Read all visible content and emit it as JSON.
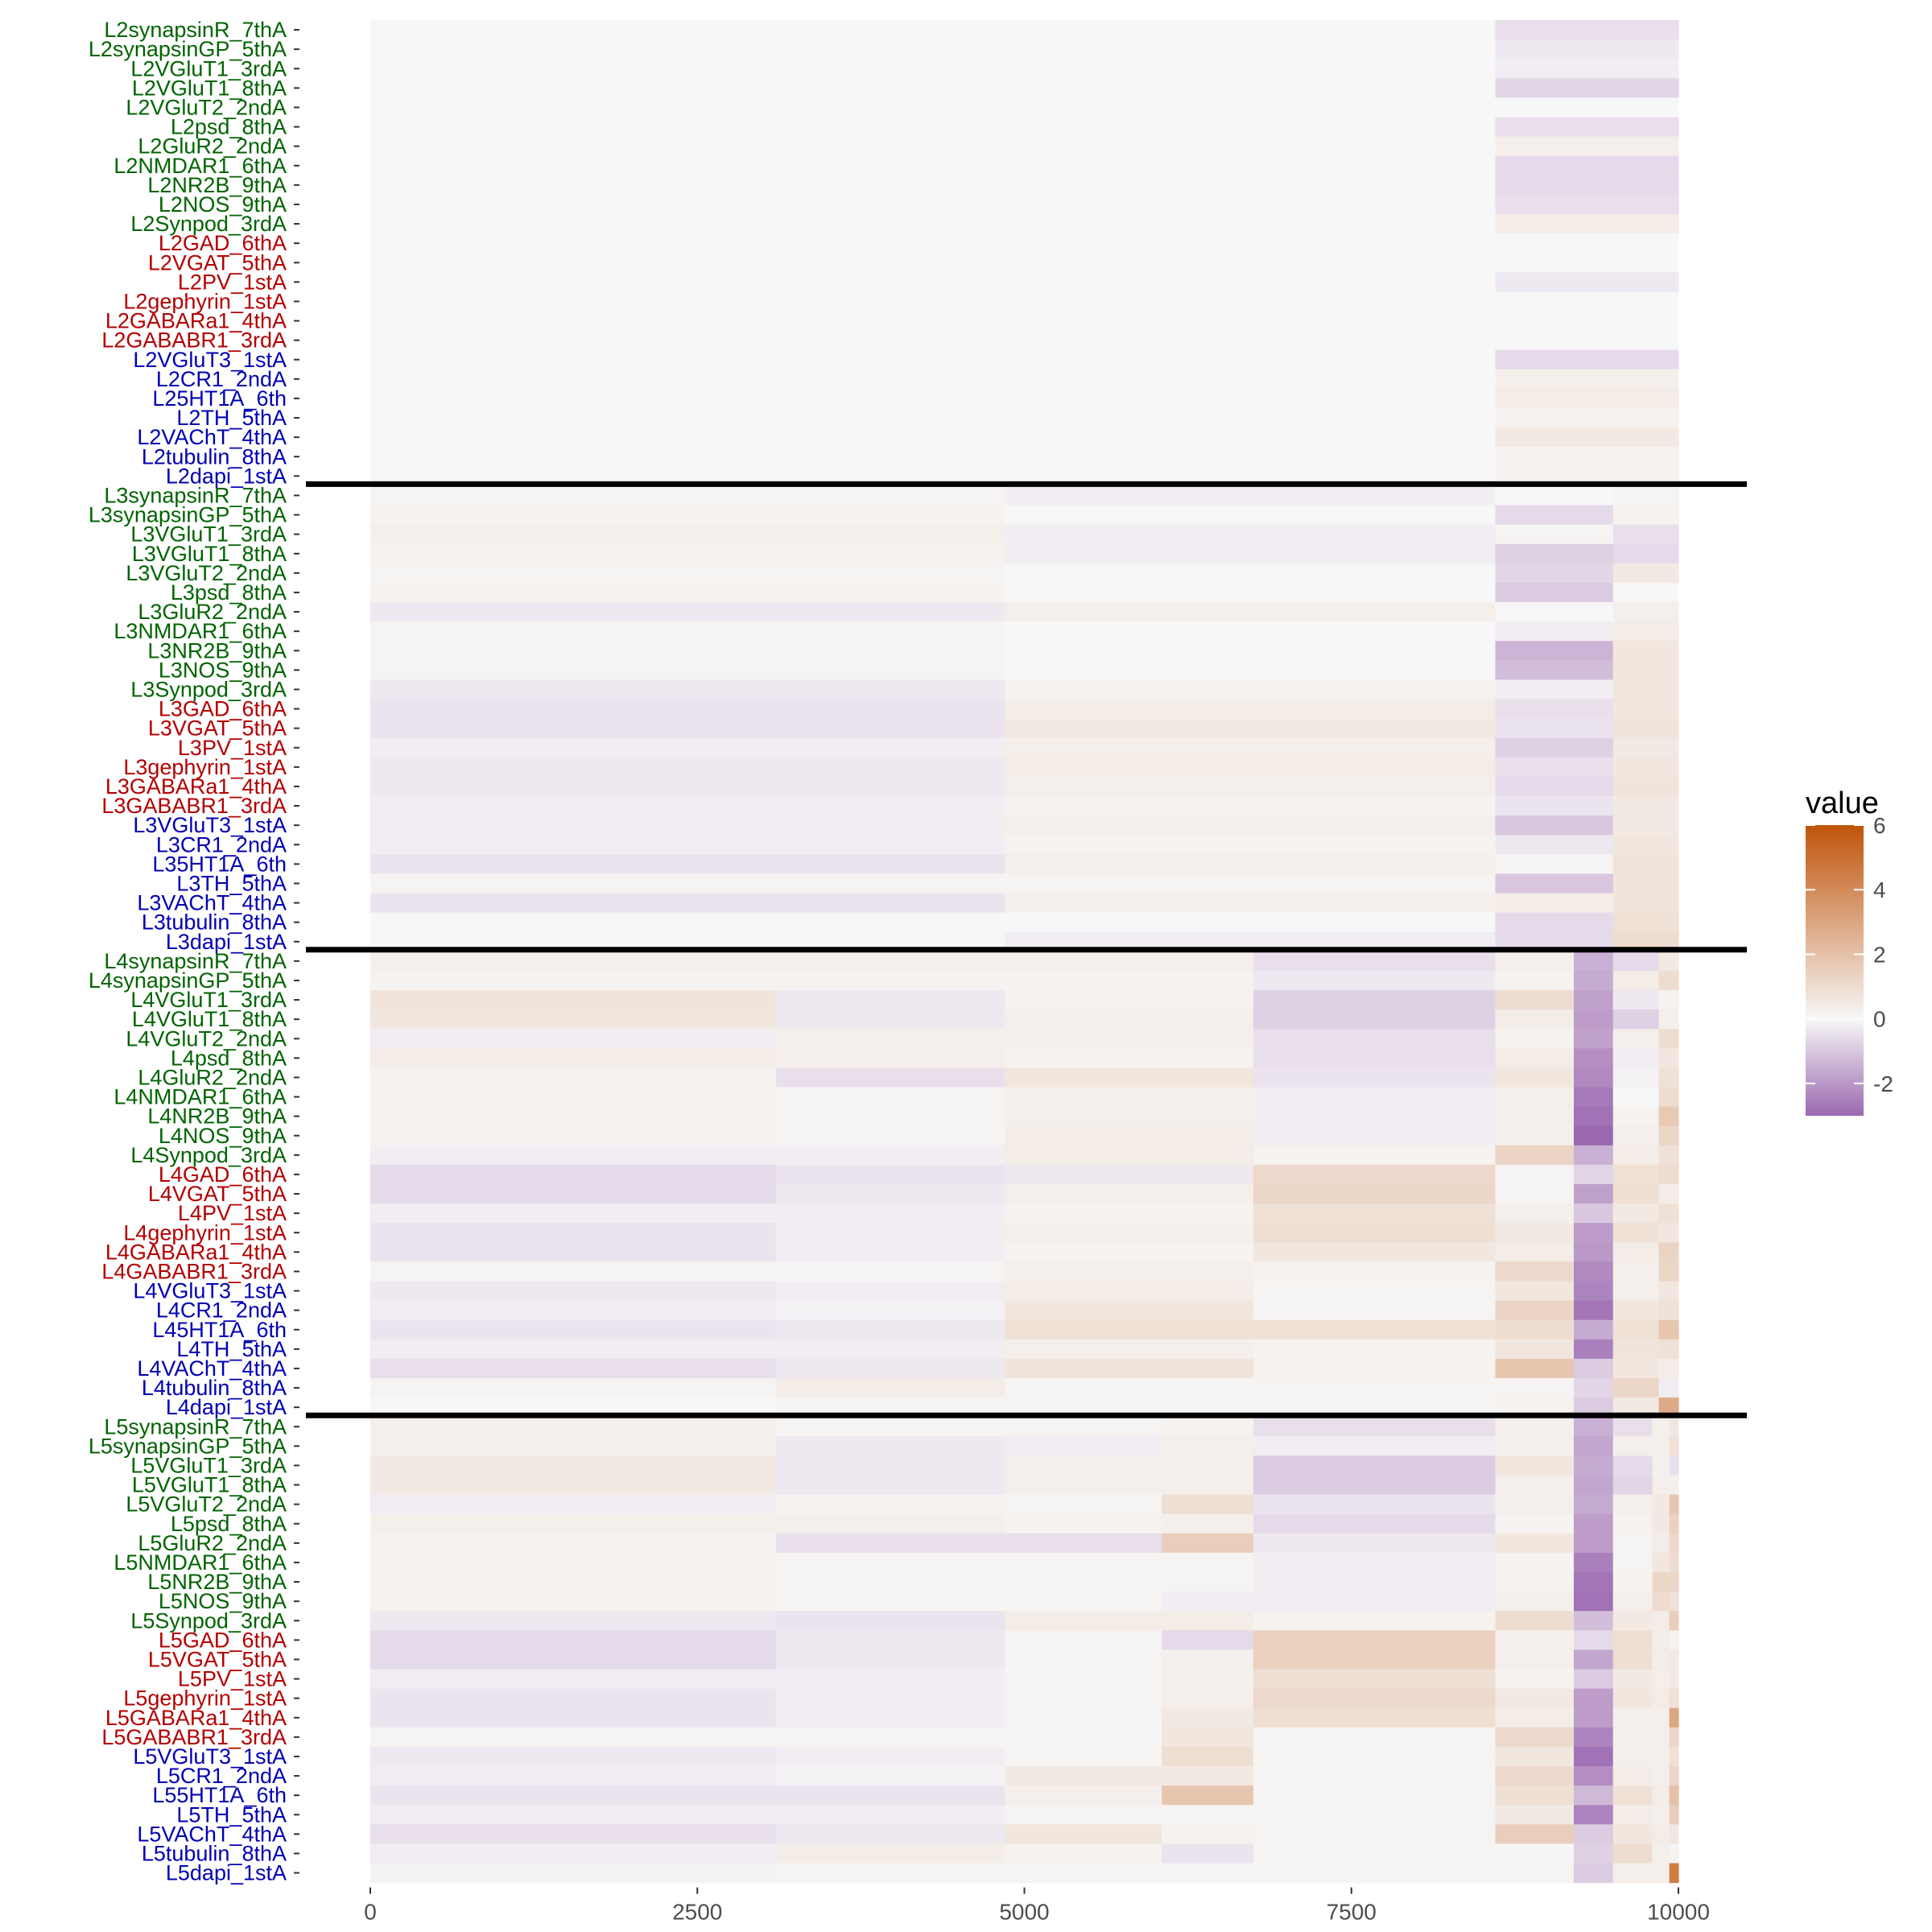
{
  "chart_data": {
    "type": "heatmap",
    "title": "",
    "xlabel": "",
    "ylabel": "",
    "xlim": [
      0,
      10000
    ],
    "x_ticks": [
      0,
      2500,
      5000,
      7500,
      10000
    ],
    "x_tick_labels": [
      "0",
      "2500",
      "5000",
      "7500",
      "10000"
    ],
    "legend": {
      "title": "value",
      "position": "right",
      "range": [
        -3,
        6
      ],
      "ticks": [
        6,
        4,
        2,
        0,
        -2
      ],
      "tick_labels": [
        "6",
        "4",
        "2",
        "0",
        "-2"
      ]
    },
    "colors": {
      "low": "#9b68b0",
      "mid": "#f7f7f7",
      "high": "#c0540a",
      "group_excitatory": "#006400",
      "group_inhibitory": "#b30000",
      "group_other": "#0000b3",
      "separator": "#000000"
    },
    "marker_order": [
      "synapsinR_7thA",
      "synapsinGP_5thA",
      "VGluT1_3rdA",
      "VGluT1_8thA",
      "VGluT2_2ndA",
      "psd_8thA",
      "GluR2_2ndA",
      "NMDAR1_6thA",
      "NR2B_9thA",
      "NOS_9thA",
      "Synpod_3rdA",
      "GAD_6thA",
      "VGAT_5thA",
      "PV_1stA",
      "gephyrin_1stA",
      "GABARa1_4thA",
      "GABABR1_3rdA",
      "VGluT3_1stA",
      "CR1_2ndA",
      "5HT1A_6th",
      "TH_5thA",
      "VAChT_4thA",
      "tubulin_8thA",
      "dapi_1stA"
    ],
    "marker_groups": [
      "excitatory",
      "excitatory",
      "excitatory",
      "excitatory",
      "excitatory",
      "excitatory",
      "excitatory",
      "excitatory",
      "excitatory",
      "excitatory",
      "excitatory",
      "inhibitory",
      "inhibitory",
      "inhibitory",
      "inhibitory",
      "inhibitory",
      "inhibitory",
      "other",
      "other",
      "other",
      "other",
      "other",
      "other",
      "other"
    ],
    "layers": [
      {
        "name": "L2",
        "row_labels": [
          "L2synapsinR_7thA",
          "L2synapsinGP_5thA",
          "L2VGluT1_3rdA",
          "L2VGluT1_8thA",
          "L2VGluT2_2ndA",
          "L2psd_8thA",
          "L2GluR2_2ndA",
          "L2NMDAR1_6thA",
          "L2NR2B_9thA",
          "L2NOS_9thA",
          "L2Synpod_3rdA",
          "L2GAD_6thA",
          "L2VGAT_5thA",
          "L2PV_1stA",
          "L2gephyrin_1stA",
          "L2GABARa1_4thA",
          "L2GABABR1_3rdA",
          "L2VGluT3_1stA",
          "L2CR1_2ndA",
          "L25HT1A_6th",
          "L2TH_5thA",
          "L2VAChT_4thA",
          "L2tubulin_8thA",
          "L2dapi_1stA"
        ],
        "x_breaks": [
          0,
          8600,
          10000
        ],
        "values": [
          [
            0.0,
            -0.5
          ],
          [
            0.0,
            -0.3
          ],
          [
            0.0,
            -0.2
          ],
          [
            0.0,
            -0.7
          ],
          [
            0.0,
            0.0
          ],
          [
            0.0,
            -0.5
          ],
          [
            0.0,
            0.3
          ],
          [
            0.0,
            -0.6
          ],
          [
            0.0,
            -0.6
          ],
          [
            0.0,
            -0.5
          ],
          [
            0.0,
            0.4
          ],
          [
            0.0,
            0.0
          ],
          [
            0.0,
            0.0
          ],
          [
            0.0,
            -0.3
          ],
          [
            0.0,
            0.0
          ],
          [
            0.0,
            0.0
          ],
          [
            0.0,
            0.0
          ],
          [
            0.0,
            -0.6
          ],
          [
            0.0,
            0.3
          ],
          [
            0.0,
            0.4
          ],
          [
            0.0,
            0.2
          ],
          [
            0.0,
            0.5
          ],
          [
            0.0,
            0.2
          ],
          [
            0.0,
            0.2
          ]
        ]
      },
      {
        "name": "L3",
        "row_labels": [
          "L3synapsinR_7thA",
          "L3synapsinGP_5thA",
          "L3VGluT1_3rdA",
          "L3VGluT1_8thA",
          "L3VGluT2_2ndA",
          "L3psd_8thA",
          "L3GluR2_2ndA",
          "L3NMDAR1_6thA",
          "L3NR2B_9thA",
          "L3NOS_9thA",
          "L3Synpod_3rdA",
          "L3GAD_6thA",
          "L3VGAT_5thA",
          "L3PV_1stA",
          "L3gephyrin_1stA",
          "L3GABARa1_4thA",
          "L3GABABR1_3rdA",
          "L3VGluT3_1stA",
          "L3CR1_2ndA",
          "L35HT1A_6th",
          "L3TH_5thA",
          "L3VAChT_4thA",
          "L3tubulin_8thA",
          "L3dapi_1stA"
        ],
        "x_breaks": [
          0,
          4850,
          8600,
          9500,
          10000
        ],
        "values": [
          [
            0.1,
            -0.2,
            0.0,
            0.1
          ],
          [
            0.2,
            0.0,
            -0.6,
            0.2
          ],
          [
            0.3,
            -0.2,
            0.1,
            -0.5
          ],
          [
            0.2,
            -0.2,
            -0.8,
            -0.6
          ],
          [
            0.1,
            0.0,
            -0.7,
            0.5
          ],
          [
            0.2,
            0.0,
            -0.9,
            0.0
          ],
          [
            -0.3,
            0.3,
            0.0,
            0.3
          ],
          [
            0.1,
            0.0,
            -0.2,
            0.4
          ],
          [
            0.1,
            0.0,
            -1.4,
            0.6
          ],
          [
            0.1,
            0.0,
            -1.2,
            0.6
          ],
          [
            -0.3,
            0.2,
            -0.2,
            0.6
          ],
          [
            -0.4,
            0.4,
            -0.5,
            0.6
          ],
          [
            -0.4,
            0.5,
            -0.4,
            0.7
          ],
          [
            -0.2,
            0.3,
            -0.8,
            0.5
          ],
          [
            -0.3,
            0.4,
            -0.5,
            0.6
          ],
          [
            -0.3,
            0.3,
            -0.6,
            0.7
          ],
          [
            -0.2,
            0.2,
            -0.4,
            0.5
          ],
          [
            -0.2,
            0.3,
            -1.0,
            0.5
          ],
          [
            -0.2,
            0.2,
            -0.3,
            0.6
          ],
          [
            -0.4,
            0.3,
            0.1,
            0.7
          ],
          [
            0.1,
            0.1,
            -1.0,
            0.7
          ],
          [
            -0.4,
            0.3,
            0.4,
            0.7
          ],
          [
            0.0,
            0.0,
            -0.6,
            0.8
          ],
          [
            0.0,
            -0.2,
            -0.6,
            1.0
          ]
        ]
      },
      {
        "name": "L4",
        "row_labels": [
          "L4synapsinR_7thA",
          "L4synapsinGP_5thA",
          "L4VGluT1_3rdA",
          "L4VGluT1_8thA",
          "L4VGluT2_2ndA",
          "L4psd_8thA",
          "L4GluR2_2ndA",
          "L4NMDAR1_6thA",
          "L4NR2B_9thA",
          "L4NOS_9thA",
          "L4Synpod_3rdA",
          "L4GAD_6thA",
          "L4VGAT_5thA",
          "L4PV_1stA",
          "L4gephyrin_1stA",
          "L4GABARa1_4thA",
          "L4GABABR1_3rdA",
          "L4VGluT3_1stA",
          "L4CR1_2ndA",
          "L45HT1A_6th",
          "L4TH_5thA",
          "L4VAChT_4thA",
          "L4tubulin_8thA",
          "L4dapi_1stA"
        ],
        "x_breaks": [
          0,
          3100,
          4850,
          6750,
          8600,
          9200,
          9500,
          9850,
          10000
        ],
        "values": [
          [
            0.3,
            0.3,
            0.3,
            -0.5,
            0.3,
            -1.5,
            -0.6,
            0.5
          ],
          [
            0.2,
            0.2,
            0.2,
            -0.3,
            0.2,
            -1.6,
            0.4,
            1.0
          ],
          [
            0.7,
            -0.3,
            0.2,
            -0.8,
            1.0,
            -1.8,
            -0.3,
            0.2
          ],
          [
            0.6,
            -0.3,
            0.3,
            -0.8,
            0.4,
            -1.9,
            -0.8,
            0.3
          ],
          [
            -0.2,
            0.3,
            0.3,
            -0.5,
            0.2,
            -1.8,
            0.3,
            1.0
          ],
          [
            0.4,
            0.3,
            0.2,
            -0.5,
            0.4,
            -2.2,
            -0.2,
            0.6
          ],
          [
            0.2,
            -0.5,
            0.6,
            -0.4,
            0.6,
            -2.3,
            -0.1,
            0.8
          ],
          [
            0.2,
            0.1,
            0.3,
            -0.2,
            0.3,
            -2.6,
            0.0,
            1.0
          ],
          [
            0.2,
            0.1,
            0.3,
            -0.2,
            0.3,
            -2.8,
            0.2,
            1.7
          ],
          [
            0.2,
            0.1,
            0.4,
            -0.2,
            0.3,
            -3.0,
            0.3,
            1.2
          ],
          [
            -0.2,
            -0.2,
            0.4,
            0.2,
            1.3,
            -1.5,
            0.4,
            0.8
          ],
          [
            -0.6,
            -0.4,
            -0.3,
            1.1,
            0.1,
            -0.7,
            0.8,
            1.0
          ],
          [
            -0.6,
            -0.3,
            0.3,
            1.2,
            0.1,
            -1.8,
            0.9,
            0.4
          ],
          [
            -0.2,
            -0.2,
            0.2,
            0.8,
            0.3,
            -1.0,
            0.5,
            0.8
          ],
          [
            -0.4,
            -0.2,
            0.3,
            0.9,
            0.5,
            -1.9,
            0.8,
            0.6
          ],
          [
            -0.4,
            -0.2,
            0.2,
            0.6,
            0.4,
            -2.0,
            0.4,
            1.3
          ],
          [
            0.1,
            0.1,
            0.3,
            0.2,
            1.1,
            -2.3,
            0.3,
            1.2
          ],
          [
            -0.3,
            -0.2,
            0.4,
            0.1,
            0.6,
            -2.4,
            0.3,
            0.6
          ],
          [
            -0.2,
            -0.1,
            0.6,
            0.1,
            1.3,
            -2.7,
            0.6,
            0.8
          ],
          [
            -0.4,
            -0.3,
            0.8,
            0.8,
            1.0,
            -1.6,
            0.8,
            1.8
          ],
          [
            -0.2,
            -0.2,
            0.3,
            0.2,
            0.6,
            -2.5,
            0.7,
            0.8
          ],
          [
            -0.5,
            -0.3,
            0.7,
            0.2,
            1.8,
            -0.9,
            0.6,
            0.4
          ],
          [
            0.1,
            0.4,
            0.1,
            0.1,
            0.1,
            -0.7,
            1.2,
            -0.2
          ],
          [
            0.0,
            0.1,
            0.1,
            0.1,
            0.2,
            -0.9,
            0.5,
            2.8
          ]
        ]
      },
      {
        "name": "L5",
        "row_labels": [
          "L5synapsinR_7thA",
          "L5synapsinGP_5thA",
          "L5VGluT1_3rdA",
          "L5VGluT1_8thA",
          "L5VGluT2_2ndA",
          "L5psd_8thA",
          "L5GluR2_2ndA",
          "L5NMDAR1_6thA",
          "L5NR2B_9thA",
          "L5NOS_9thA",
          "L5Synpod_3rdA",
          "L5GAD_6thA",
          "L5VGAT_5thA",
          "L5PV_1stA",
          "L5gephyrin_1stA",
          "L5GABARa1_4thA",
          "L5GABABR1_3rdA",
          "L5VGluT3_1stA",
          "L5CR1_2ndA",
          "L55HT1A_6th",
          "L5TH_5thA",
          "L5VAChT_4thA",
          "L5tubulin_8thA",
          "L5dapi_1stA"
        ],
        "x_breaks": [
          0,
          3100,
          4850,
          6050,
          6750,
          8600,
          9200,
          9500,
          9800,
          9930,
          10000
        ],
        "values": [
          [
            0.3,
            0.1,
            0.1,
            0.2,
            -0.5,
            0.3,
            -1.5,
            -0.5,
            0.3,
            0.6
          ],
          [
            0.3,
            -0.3,
            -0.2,
            0.3,
            -0.2,
            0.3,
            -1.7,
            0.3,
            0.3,
            0.8
          ],
          [
            0.5,
            -0.3,
            0.3,
            0.3,
            -0.9,
            0.6,
            -1.6,
            -0.6,
            0.3,
            -0.5
          ],
          [
            0.5,
            -0.3,
            0.3,
            0.3,
            -0.9,
            0.3,
            -1.7,
            -0.7,
            0.3,
            0.3
          ],
          [
            -0.2,
            0.2,
            0.1,
            0.9,
            -0.4,
            0.3,
            -1.6,
            0.3,
            0.5,
            1.8
          ],
          [
            0.3,
            0.3,
            0.2,
            0.3,
            -0.6,
            0.2,
            -1.9,
            0.2,
            0.5,
            1.4
          ],
          [
            0.2,
            -0.5,
            -0.5,
            1.5,
            -0.3,
            0.6,
            -1.9,
            0.1,
            0.4,
            1.1
          ],
          [
            0.2,
            0.1,
            0.1,
            0.1,
            -0.2,
            0.2,
            -2.5,
            0.1,
            0.6,
            1.0
          ],
          [
            0.2,
            0.1,
            0.1,
            0.1,
            -0.2,
            0.2,
            -2.7,
            0.2,
            1.2,
            1.2
          ],
          [
            0.2,
            0.1,
            0.1,
            -0.2,
            -0.2,
            0.3,
            -2.8,
            0.3,
            1.0,
            0.8
          ],
          [
            -0.3,
            -0.4,
            0.4,
            0.4,
            0.2,
            1.0,
            -1.2,
            0.5,
            0.4,
            1.5
          ],
          [
            -0.6,
            -0.3,
            0.1,
            -0.6,
            1.4,
            0.3,
            -0.6,
            0.9,
            0.4,
            0.2
          ],
          [
            -0.6,
            -0.3,
            0.1,
            0.3,
            1.4,
            0.3,
            -1.7,
            0.9,
            0.4,
            0.5
          ],
          [
            -0.2,
            -0.2,
            0.1,
            0.3,
            0.9,
            0.2,
            -0.9,
            0.5,
            0.3,
            0.5
          ],
          [
            -0.4,
            -0.2,
            0.1,
            0.3,
            1.1,
            0.5,
            -1.9,
            0.6,
            0.4,
            0.8
          ],
          [
            -0.4,
            -0.2,
            0.1,
            0.5,
            0.9,
            0.4,
            -1.9,
            0.3,
            0.3,
            3.0
          ],
          [
            0.1,
            0.1,
            0.1,
            0.6,
            0.1,
            1.1,
            -2.4,
            0.3,
            0.3,
            1.2
          ],
          [
            -0.3,
            -0.2,
            0.1,
            0.9,
            0.1,
            0.6,
            -2.8,
            0.3,
            0.3,
            0.8
          ],
          [
            -0.2,
            -0.1,
            0.5,
            0.5,
            0.1,
            1.1,
            -2.2,
            0.4,
            0.3,
            1.2
          ],
          [
            -0.4,
            -0.4,
            0.3,
            1.8,
            0.1,
            0.9,
            -1.3,
            0.8,
            0.4,
            2.0
          ],
          [
            -0.2,
            -0.2,
            0.1,
            0.1,
            0.1,
            0.5,
            -2.4,
            0.4,
            0.3,
            1.5
          ],
          [
            -0.5,
            -0.3,
            0.6,
            0.2,
            0.1,
            1.5,
            -0.9,
            0.6,
            0.4,
            0.6
          ],
          [
            -0.2,
            0.4,
            0.2,
            -0.4,
            0.1,
            0.1,
            -0.8,
            1.0,
            0.3,
            0.1
          ],
          [
            -0.1,
            0.1,
            0.1,
            0.1,
            0.1,
            0.1,
            -0.9,
            0.3,
            0.3,
            4.5
          ]
        ]
      }
    ]
  }
}
